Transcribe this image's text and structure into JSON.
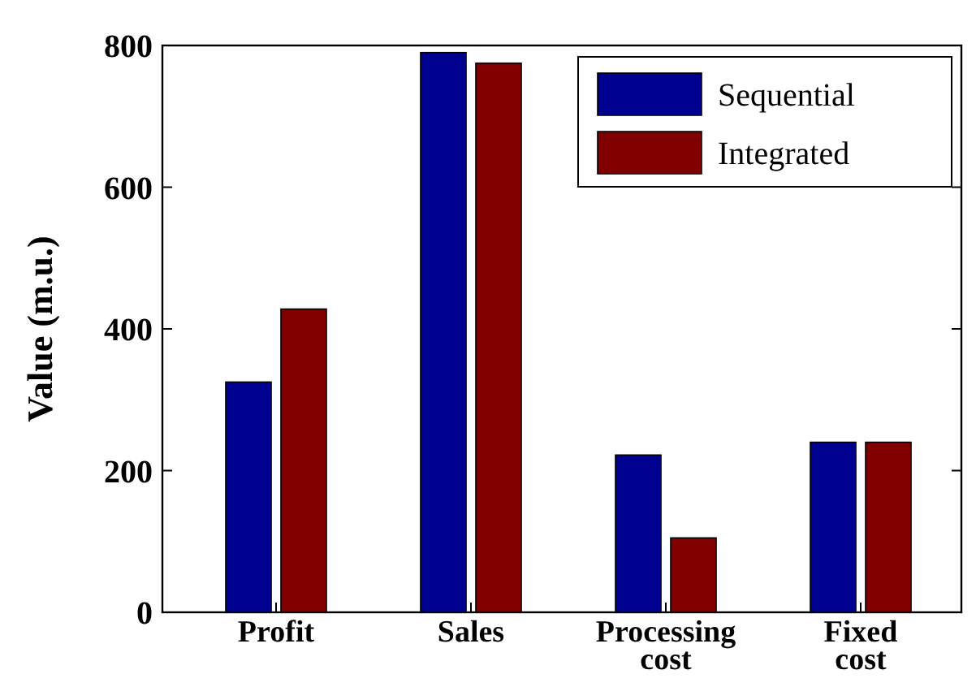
{
  "chart_data": {
    "type": "bar",
    "ylabel": "Value (m.u.)",
    "categories": [
      "Profit",
      "Sales",
      "Processing cost",
      "Fixed cost"
    ],
    "series": [
      {
        "name": "Sequential",
        "color": "#000090",
        "values": [
          325,
          790,
          222,
          240
        ]
      },
      {
        "name": "Integrated",
        "color": "#800000",
        "values": [
          428,
          775,
          105,
          240
        ]
      }
    ],
    "ylim": [
      0,
      800
    ],
    "yticks": [
      0,
      200,
      400,
      600,
      800
    ],
    "grid": false,
    "legend": "top right"
  }
}
